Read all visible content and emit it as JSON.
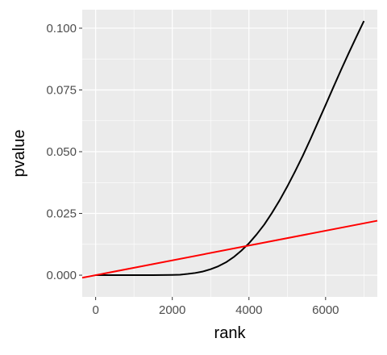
{
  "chart_data": {
    "type": "line",
    "title": "",
    "xlabel": "rank",
    "ylabel": "pvalue",
    "xlim": [
      -350,
      7350
    ],
    "ylim": [
      -0.0088,
      0.1075
    ],
    "x_ticks": [
      0,
      2000,
      4000,
      6000
    ],
    "x_tick_labels": [
      "0",
      "2000",
      "4000",
      "6000"
    ],
    "y_ticks": [
      0,
      0.025,
      0.05,
      0.075,
      0.1
    ],
    "y_tick_labels": [
      "0.000",
      "0.025",
      "0.050",
      "0.075",
      "0.100"
    ],
    "grid": true,
    "background": "#ebebeb",
    "series": [
      {
        "color": "#000000",
        "x": [
          0,
          500,
          1000,
          1500,
          2000,
          2200,
          2400,
          2600,
          2800,
          3000,
          3200,
          3400,
          3600,
          3800,
          4000,
          4200,
          4400,
          4600,
          4800,
          5000,
          5200,
          5400,
          5600,
          5800,
          6000,
          6200,
          6400,
          6600,
          6800,
          7000
        ],
        "y": [
          0.0,
          0.0,
          0.0,
          0.0,
          0.0001,
          0.0002,
          0.0005,
          0.0009,
          0.0015,
          0.0024,
          0.0036,
          0.0052,
          0.0073,
          0.0099,
          0.0129,
          0.0165,
          0.0205,
          0.0252,
          0.0303,
          0.0359,
          0.0419,
          0.0482,
          0.0549,
          0.0619,
          0.0689,
          0.076,
          0.083,
          0.0898,
          0.0964,
          0.1029
        ]
      },
      {
        "color": "#ff0000",
        "x": [
          -350,
          7350
        ],
        "y": [
          -0.00105,
          0.02205
        ]
      }
    ]
  }
}
